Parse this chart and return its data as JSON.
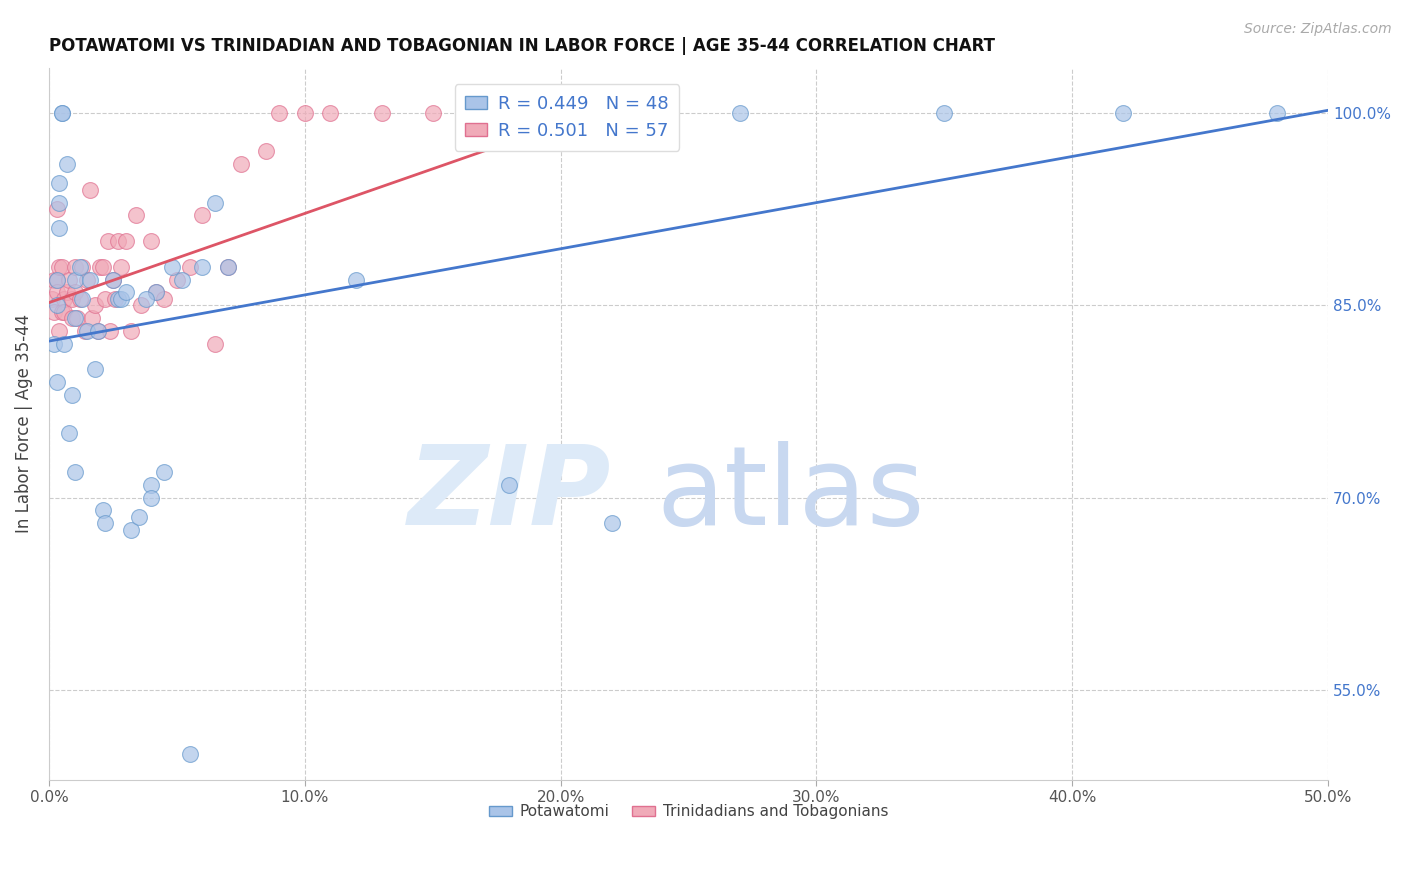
{
  "title": "POTAWATOMI VS TRINIDADIAN AND TOBAGONIAN IN LABOR FORCE | AGE 35-44 CORRELATION CHART",
  "source": "Source: ZipAtlas.com",
  "ylabel_label": "In Labor Force | Age 35-44",
  "xlim": [
    0.0,
    0.5
  ],
  "ylim": [
    0.48,
    1.035
  ],
  "xticks": [
    0.0,
    0.1,
    0.2,
    0.3,
    0.4,
    0.5
  ],
  "xticklabels": [
    "0.0%",
    "10.0%",
    "20.0%",
    "30.0%",
    "40.0%",
    "50.0%"
  ],
  "yticks": [
    0.55,
    0.7,
    0.85,
    1.0
  ],
  "right_yticklabels": [
    "55.0%",
    "70.0%",
    "85.0%",
    "100.0%"
  ],
  "blue_r": 0.449,
  "blue_n": 48,
  "pink_r": 0.501,
  "pink_n": 57,
  "blue_color": "#aac4e8",
  "pink_color": "#f0aab8",
  "blue_edge_color": "#6699cc",
  "pink_edge_color": "#e07090",
  "blue_line_color": "#4477cc",
  "pink_line_color": "#dd5566",
  "blue_x": [
    0.002,
    0.003,
    0.003,
    0.004,
    0.004,
    0.005,
    0.005,
    0.006,
    0.007,
    0.008,
    0.009,
    0.01,
    0.01,
    0.012,
    0.013,
    0.015,
    0.018,
    0.021,
    0.022,
    0.025,
    0.027,
    0.028,
    0.03,
    0.032,
    0.035,
    0.04,
    0.04,
    0.042,
    0.045,
    0.055,
    0.07,
    0.12,
    0.22,
    0.27,
    0.35,
    0.42,
    0.48,
    0.003,
    0.004,
    0.01,
    0.016,
    0.019,
    0.038,
    0.048,
    0.052,
    0.06,
    0.065,
    0.18
  ],
  "blue_y": [
    0.82,
    0.87,
    0.85,
    0.93,
    0.91,
    1.0,
    1.0,
    0.82,
    0.96,
    0.75,
    0.78,
    0.84,
    0.87,
    0.88,
    0.855,
    0.83,
    0.8,
    0.69,
    0.68,
    0.87,
    0.855,
    0.855,
    0.86,
    0.675,
    0.685,
    0.71,
    0.7,
    0.86,
    0.72,
    0.5,
    0.88,
    0.87,
    0.68,
    1.0,
    1.0,
    1.0,
    1.0,
    0.79,
    0.945,
    0.72,
    0.87,
    0.83,
    0.855,
    0.88,
    0.87,
    0.88,
    0.93,
    0.71
  ],
  "pink_x": [
    0.001,
    0.002,
    0.002,
    0.003,
    0.003,
    0.004,
    0.004,
    0.005,
    0.005,
    0.006,
    0.006,
    0.007,
    0.008,
    0.009,
    0.009,
    0.01,
    0.01,
    0.011,
    0.012,
    0.013,
    0.014,
    0.015,
    0.016,
    0.017,
    0.018,
    0.019,
    0.02,
    0.021,
    0.022,
    0.023,
    0.025,
    0.026,
    0.027,
    0.028,
    0.03,
    0.032,
    0.034,
    0.036,
    0.04,
    0.042,
    0.045,
    0.05,
    0.055,
    0.065,
    0.075,
    0.085,
    0.09,
    0.1,
    0.11,
    0.13,
    0.15,
    0.18,
    0.22,
    0.003,
    0.024,
    0.06,
    0.07
  ],
  "pink_y": [
    0.855,
    0.87,
    0.845,
    0.87,
    0.86,
    0.88,
    0.83,
    0.88,
    0.845,
    0.855,
    0.845,
    0.86,
    0.87,
    0.84,
    0.855,
    0.88,
    0.86,
    0.84,
    0.855,
    0.88,
    0.83,
    0.87,
    0.94,
    0.84,
    0.85,
    0.83,
    0.88,
    0.88,
    0.855,
    0.9,
    0.87,
    0.855,
    0.9,
    0.88,
    0.9,
    0.83,
    0.92,
    0.85,
    0.9,
    0.86,
    0.855,
    0.87,
    0.88,
    0.82,
    0.96,
    0.97,
    1.0,
    1.0,
    1.0,
    1.0,
    1.0,
    1.0,
    1.0,
    0.925,
    0.83,
    0.92,
    0.88
  ],
  "blue_trendline_x": [
    0.0,
    0.5
  ],
  "blue_trendline_y": [
    0.822,
    1.002
  ],
  "pink_trendline_x": [
    0.0,
    0.22
  ],
  "pink_trendline_y": [
    0.852,
    1.005
  ]
}
